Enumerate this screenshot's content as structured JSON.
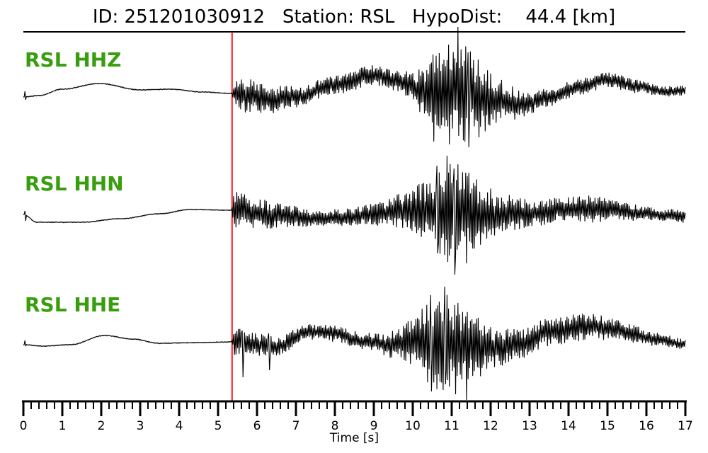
{
  "header": {
    "title": "ID: 251201030912   Station: RSL   HypoDist:    44.4 [km]",
    "event_id": "251201030912",
    "station": "RSL",
    "hypo_dist_km": 44.4
  },
  "chart_data": {
    "type": "line",
    "title": "ID: 251201030912   Station: RSL   HypoDist:    44.4 [km]",
    "xlabel": "Time [s]",
    "x_range": [
      0,
      17
    ],
    "x_major_tick_step": 1,
    "x_minor_tick_step": 0.2,
    "x_tick_labels": [
      "0",
      "1",
      "2",
      "3",
      "4",
      "5",
      "6",
      "7",
      "8",
      "9",
      "10",
      "11",
      "12",
      "13",
      "14",
      "15",
      "16",
      "17"
    ],
    "grid": false,
    "legend": "none",
    "pick_line": {
      "time_s": 5.36,
      "color": "#fb0000"
    },
    "colors": {
      "trace": "#000000",
      "label_green": "#389e0d",
      "axis": "#000000"
    },
    "traces": [
      {
        "label": "RSL HHZ",
        "channel": "HHZ",
        "seed": 11,
        "drift": [
          [
            0,
            -5
          ],
          [
            0.4,
            -3
          ],
          [
            1.0,
            6
          ],
          [
            1.95,
            14
          ],
          [
            3.0,
            5
          ],
          [
            3.8,
            6
          ],
          [
            4.6,
            2
          ],
          [
            5.36,
            0
          ],
          [
            5.8,
            -4
          ],
          [
            6.3,
            -9
          ],
          [
            7.0,
            -5
          ],
          [
            8.0,
            12
          ],
          [
            9.0,
            26
          ],
          [
            9.6,
            18
          ],
          [
            10.2,
            5
          ],
          [
            11.2,
            0
          ],
          [
            12.2,
            -10
          ],
          [
            12.8,
            -16
          ],
          [
            13.5,
            -6
          ],
          [
            14.3,
            10
          ],
          [
            15.0,
            19
          ],
          [
            15.8,
            10
          ],
          [
            16.4,
            3
          ],
          [
            17,
            4
          ]
        ],
        "envelope": [
          [
            0,
            0.8
          ],
          [
            5.34,
            0.8
          ],
          [
            5.42,
            20
          ],
          [
            5.8,
            24
          ],
          [
            6.5,
            19
          ],
          [
            7.2,
            14
          ],
          [
            8.0,
            13
          ],
          [
            8.8,
            15
          ],
          [
            9.4,
            14
          ],
          [
            9.9,
            18
          ],
          [
            10.3,
            35
          ],
          [
            10.7,
            55
          ],
          [
            11.0,
            66
          ],
          [
            11.3,
            68
          ],
          [
            11.7,
            52
          ],
          [
            12.1,
            38
          ],
          [
            12.5,
            24
          ],
          [
            13.0,
            15
          ],
          [
            13.6,
            12
          ],
          [
            14.2,
            12
          ],
          [
            15.0,
            11
          ],
          [
            15.6,
            10
          ],
          [
            16.2,
            8
          ],
          [
            17,
            7
          ]
        ],
        "spikes": [
          [
            0.03,
            3,
            -9
          ],
          [
            10.52,
            55,
            -68
          ],
          [
            10.92,
            69,
            -72
          ],
          [
            11.15,
            94,
            -60
          ],
          [
            11.42,
            58,
            -76
          ],
          [
            11.68,
            48,
            -62
          ]
        ]
      },
      {
        "label": "RSL HHN",
        "channel": "HHN",
        "seed": 47,
        "drift": [
          [
            0,
            -3
          ],
          [
            0.35,
            -14
          ],
          [
            1.5,
            -14
          ],
          [
            2.5,
            -9
          ],
          [
            3.5,
            -2
          ],
          [
            4.3,
            4
          ],
          [
            5.36,
            3
          ],
          [
            6.5,
            -4
          ],
          [
            7.5,
            -9
          ],
          [
            8.3,
            -7
          ],
          [
            9.0,
            -2
          ],
          [
            9.8,
            3
          ],
          [
            10.9,
            0
          ],
          [
            12.0,
            -4
          ],
          [
            13.0,
            -2
          ],
          [
            14.0,
            6
          ],
          [
            15.0,
            4
          ],
          [
            16.0,
            -2
          ],
          [
            17,
            -6
          ]
        ],
        "envelope": [
          [
            0,
            0.8
          ],
          [
            5.34,
            0.8
          ],
          [
            5.42,
            26
          ],
          [
            6.0,
            22
          ],
          [
            6.8,
            16
          ],
          [
            7.6,
            11
          ],
          [
            8.4,
            13
          ],
          [
            9.2,
            17
          ],
          [
            9.8,
            26
          ],
          [
            10.3,
            40
          ],
          [
            10.7,
            60
          ],
          [
            11.0,
            74
          ],
          [
            11.4,
            58
          ],
          [
            11.9,
            40
          ],
          [
            12.4,
            28
          ],
          [
            13.0,
            20
          ],
          [
            13.8,
            17
          ],
          [
            14.6,
            19
          ],
          [
            15.4,
            13
          ],
          [
            16.2,
            10
          ],
          [
            17,
            9
          ]
        ],
        "spikes": [
          [
            0.03,
            2,
            -12
          ],
          [
            10.62,
            66,
            -58
          ],
          [
            10.88,
            80,
            -70
          ],
          [
            11.05,
            62,
            -88
          ],
          [
            11.35,
            56,
            -72
          ]
        ]
      },
      {
        "label": "RSL HHE",
        "channel": "HHE",
        "seed": 83,
        "drift": [
          [
            0,
            -4
          ],
          [
            0.5,
            -6
          ],
          [
            1.2,
            -4
          ],
          [
            2.1,
            9
          ],
          [
            2.8,
            4
          ],
          [
            3.5,
            -2
          ],
          [
            4.5,
            -1
          ],
          [
            5.36,
            0
          ],
          [
            6.5,
            -6
          ],
          [
            7.3,
            14
          ],
          [
            8.0,
            12
          ],
          [
            8.8,
            0
          ],
          [
            9.4,
            -4
          ],
          [
            10.0,
            0
          ],
          [
            11.0,
            -3
          ],
          [
            12.0,
            -8
          ],
          [
            12.7,
            -4
          ],
          [
            13.5,
            14
          ],
          [
            14.6,
            22
          ],
          [
            15.3,
            16
          ],
          [
            16.2,
            4
          ],
          [
            17,
            -4
          ]
        ],
        "envelope": [
          [
            0,
            0.8
          ],
          [
            5.34,
            0.8
          ],
          [
            5.42,
            22
          ],
          [
            5.9,
            16
          ],
          [
            6.6,
            13
          ],
          [
            7.4,
            11
          ],
          [
            8.2,
            12
          ],
          [
            9.0,
            13
          ],
          [
            9.6,
            20
          ],
          [
            10.0,
            32
          ],
          [
            10.4,
            58
          ],
          [
            10.8,
            70
          ],
          [
            11.2,
            60
          ],
          [
            11.6,
            46
          ],
          [
            12.0,
            30
          ],
          [
            12.6,
            24
          ],
          [
            13.2,
            20
          ],
          [
            14.0,
            20
          ],
          [
            14.8,
            17
          ],
          [
            15.6,
            13
          ],
          [
            16.4,
            9
          ],
          [
            17,
            8
          ]
        ],
        "spikes": [
          [
            0.03,
            2,
            -6
          ],
          [
            5.62,
            16,
            -50
          ],
          [
            6.3,
            12,
            -40
          ],
          [
            10.45,
            66,
            -70
          ],
          [
            10.82,
            78,
            -60
          ],
          [
            11.08,
            52,
            -74
          ],
          [
            11.36,
            36,
            -82
          ]
        ]
      }
    ]
  }
}
